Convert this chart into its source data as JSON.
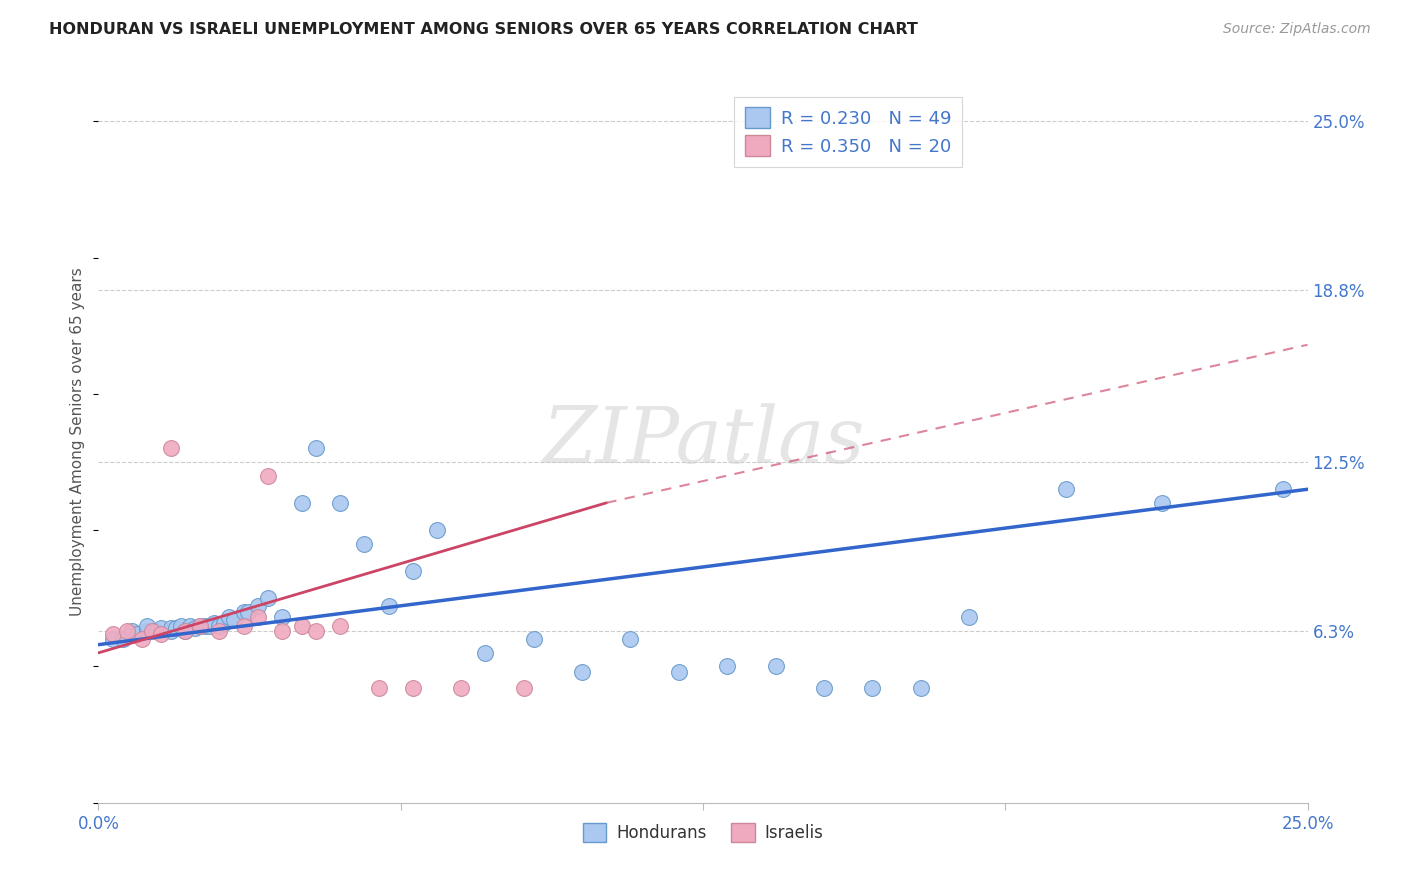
{
  "title": "HONDURAN VS ISRAELI UNEMPLOYMENT AMONG SENIORS OVER 65 YEARS CORRELATION CHART",
  "source": "Source: ZipAtlas.com",
  "ylabel": "Unemployment Among Seniors over 65 years",
  "xlim": [
    0.0,
    0.25
  ],
  "ylim": [
    0.0,
    0.265
  ],
  "ytick_labels_right": [
    "6.3%",
    "12.5%",
    "18.8%",
    "25.0%"
  ],
  "ytick_vals_right": [
    0.063,
    0.125,
    0.188,
    0.25
  ],
  "legend_label1": "Hondurans",
  "legend_label2": "Israelis",
  "watermark": "ZIPatlas",
  "blue_scatter_color": "#aac8f0",
  "blue_edge_color": "#6699cc",
  "pink_scatter_color": "#f0aac0",
  "pink_edge_color": "#cc8899",
  "blue_line_color": "#3366cc",
  "pink_line_color": "#cc4466",
  "grid_color": "#cccccc",
  "honduran_x": [
    0.003,
    0.005,
    0.007,
    0.008,
    0.01,
    0.01,
    0.012,
    0.013,
    0.015,
    0.015,
    0.016,
    0.017,
    0.018,
    0.019,
    0.02,
    0.021,
    0.022,
    0.023,
    0.024,
    0.025,
    0.026,
    0.027,
    0.028,
    0.03,
    0.031,
    0.033,
    0.035,
    0.038,
    0.042,
    0.045,
    0.05,
    0.055,
    0.06,
    0.065,
    0.07,
    0.08,
    0.09,
    0.1,
    0.11,
    0.12,
    0.13,
    0.14,
    0.15,
    0.16,
    0.17,
    0.18,
    0.2,
    0.22,
    0.245
  ],
  "honduran_y": [
    0.06,
    0.06,
    0.063,
    0.062,
    0.063,
    0.065,
    0.063,
    0.064,
    0.063,
    0.064,
    0.064,
    0.065,
    0.063,
    0.065,
    0.064,
    0.065,
    0.065,
    0.065,
    0.066,
    0.065,
    0.066,
    0.068,
    0.067,
    0.07,
    0.07,
    0.072,
    0.075,
    0.068,
    0.11,
    0.13,
    0.11,
    0.095,
    0.072,
    0.085,
    0.1,
    0.055,
    0.06,
    0.048,
    0.06,
    0.048,
    0.05,
    0.05,
    0.042,
    0.042,
    0.042,
    0.068,
    0.115,
    0.11,
    0.115
  ],
  "israeli_x": [
    0.003,
    0.006,
    0.009,
    0.011,
    0.013,
    0.015,
    0.018,
    0.021,
    0.025,
    0.03,
    0.033,
    0.035,
    0.038,
    0.042,
    0.045,
    0.05,
    0.058,
    0.065,
    0.075,
    0.088
  ],
  "israeli_y": [
    0.062,
    0.063,
    0.06,
    0.063,
    0.062,
    0.13,
    0.063,
    0.065,
    0.063,
    0.065,
    0.068,
    0.12,
    0.063,
    0.065,
    0.063,
    0.065,
    0.042,
    0.042,
    0.042,
    0.042
  ],
  "hon_line": [
    [
      0.0,
      0.25
    ],
    [
      0.058,
      0.115
    ]
  ],
  "isr_line_solid": [
    [
      0.0,
      0.105
    ],
    [
      0.055,
      0.11
    ]
  ],
  "isr_line_dash": [
    [
      0.105,
      0.25
    ],
    [
      0.11,
      0.168
    ]
  ]
}
